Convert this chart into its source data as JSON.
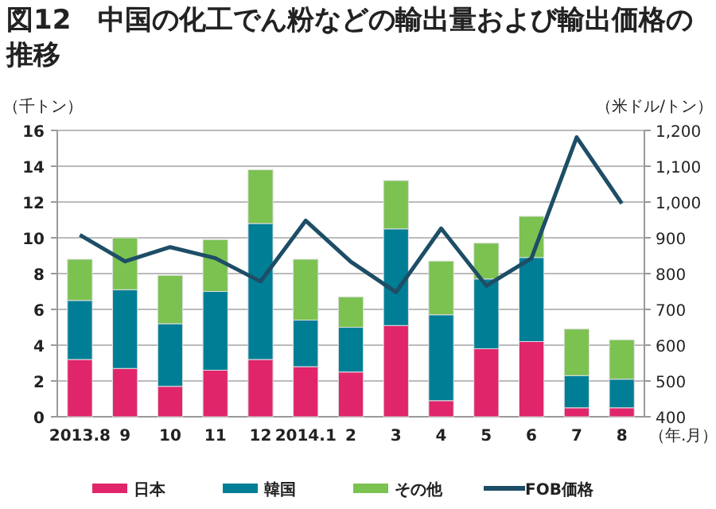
{
  "chart_data": {
    "type": "bar",
    "title": "図12　中国の化工でん粉などの輸出量および輸出価格の推移",
    "xlabel": "（年.月）",
    "ylabel": "（千トン）",
    "y2label": "（米ドル/トン）",
    "categories": [
      "2013.8",
      "9",
      "10",
      "11",
      "12",
      "2014.1",
      "2",
      "3",
      "4",
      "5",
      "6",
      "7",
      "8"
    ],
    "stacked": true,
    "grid": "y",
    "legend": "bottom",
    "ylim": [
      0,
      16
    ],
    "yticks": [
      0,
      2,
      4,
      6,
      8,
      10,
      12,
      14,
      16
    ],
    "y2lim": [
      400,
      1200
    ],
    "y2ticks": [
      400,
      500,
      600,
      700,
      800,
      900,
      {
        "value": 1000,
        "label": "1,000"
      },
      {
        "value": 1100,
        "label": "1,100"
      },
      {
        "value": 1200,
        "label": "1,200"
      }
    ],
    "series": [
      {
        "name": "日本",
        "color": "#e0256b",
        "values": [
          3.2,
          2.7,
          1.7,
          2.6,
          3.2,
          2.8,
          2.5,
          5.1,
          0.9,
          3.8,
          4.2,
          0.5,
          0.5
        ]
      },
      {
        "name": "韓国",
        "color": "#007e96",
        "values": [
          3.3,
          4.4,
          3.5,
          4.4,
          7.6,
          2.6,
          2.5,
          5.4,
          4.8,
          3.9,
          4.7,
          1.8,
          1.6
        ]
      },
      {
        "name": "その他",
        "color": "#7bc251",
        "values": [
          2.3,
          2.9,
          2.7,
          2.9,
          3.0,
          3.4,
          1.7,
          2.7,
          3.0,
          2.0,
          2.3,
          2.6,
          2.2
        ]
      },
      {
        "name": "FOB価格",
        "type": "line",
        "axis": "y2",
        "color": "#1d4e66",
        "values": [
          908,
          834,
          874,
          843,
          778,
          948,
          833,
          748,
          926,
          766,
          843,
          1181,
          996
        ]
      }
    ]
  }
}
